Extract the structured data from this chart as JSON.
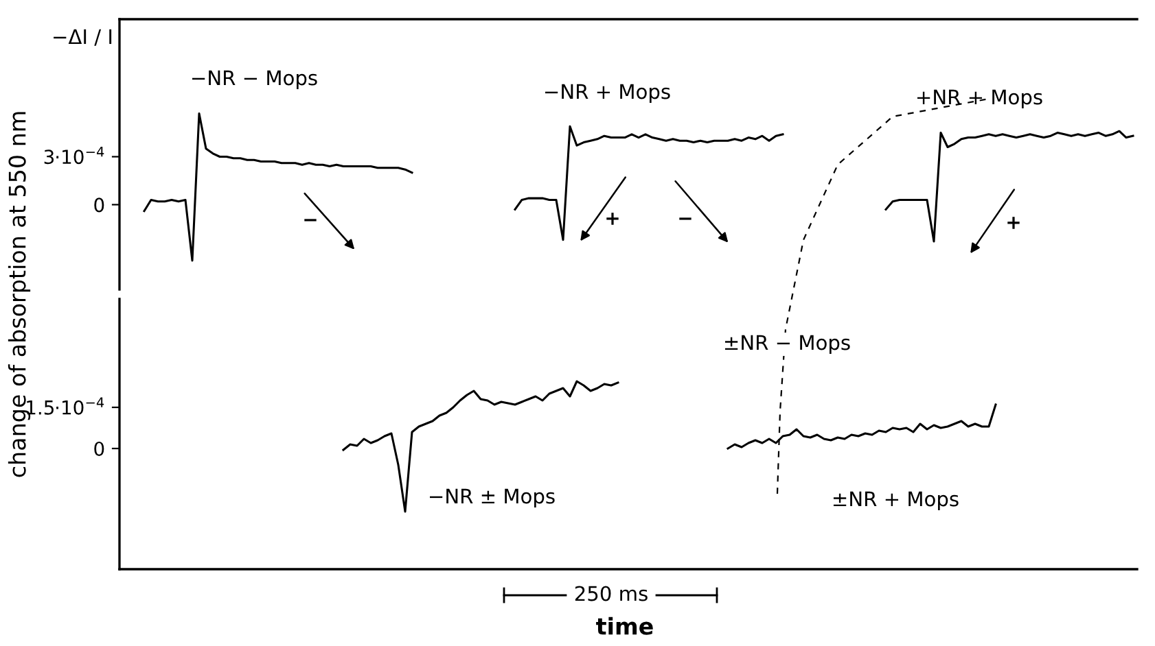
{
  "chart_data": [
    {
      "type": "line",
      "ylabel": "change of absorption at 550 nm",
      "categories": [
        null,
        null,
        null,
        null,
        null,
        null,
        null,
        null,
        null,
        null,
        null,
        null,
        null,
        null,
        null,
        null,
        null,
        null,
        null,
        null,
        null,
        null,
        null,
        null,
        null,
        null,
        null,
        null,
        null,
        null,
        null,
        null,
        null,
        null,
        null,
        null,
        null,
        null,
        null,
        null,
        null,
        null,
        null,
        null,
        null,
        null,
        null,
        null,
        null,
        null,
        null,
        null,
        null,
        null,
        null,
        null,
        null,
        null,
        null,
        null,
        null,
        null,
        null,
        null,
        null,
        null,
        null,
        null,
        null,
        null,
        null,
        null,
        null,
        null,
        null,
        null,
        null,
        null,
        null,
        null,
        null,
        null,
        null,
        null,
        null,
        null,
        null,
        null,
        null,
        null,
        null,
        null,
        null,
        null,
        null,
        null,
        null,
        null,
        null,
        null,
        null,
        null,
        null,
        null,
        null,
        null,
        null,
        null,
        null,
        null,
        null,
        null,
        null,
        null,
        null,
        null,
        null,
        null,
        null,
        null,
        null,
        null,
        null,
        null,
        null,
        null,
        null,
        null,
        null,
        null,
        null,
        null,
        null,
        null,
        null,
        null,
        null,
        null,
        null,
        null,
        null,
        null,
        null,
        null,
        null,
        null,
        null,
        null
      ],
      "ylim": [
        -0.00053,
        0.00116
      ],
      "yticks": [
        {
          "value": 0,
          "label": "0"
        },
        {
          "value": 0.0003,
          "label": "3·10$^{−4}$"
        }
      ],
      "tick_labels": "y",
      "marker": "none",
      "line_style": "solid",
      "annotations": [
        "−ΔI / I",
        "−",
        "+",
        "−",
        "+"
      ],
      "series": [
        {
          "name": "−NR − Mops",
          "color": "#000000",
          "values": [
            null,
            null,
            null,
            -4e-05,
            3e-05,
            2e-05,
            2e-05,
            3e-05,
            2e-05,
            3e-05,
            -0.00035,
            0.00057,
            0.00035,
            0.00032,
            0.0003,
            0.0003,
            0.00029,
            0.00029,
            0.00028,
            0.00028,
            0.00027,
            0.00027,
            0.00027,
            0.00026,
            0.00026,
            0.00026,
            0.00025,
            0.00026,
            0.00025,
            0.00025,
            0.00024,
            0.00025,
            0.00024,
            0.00024,
            0.00024,
            0.00024,
            0.00024,
            0.00023,
            0.00023,
            0.00023,
            0.00023,
            0.00022,
            0.0002,
            null,
            null,
            null,
            null,
            null,
            null,
            null,
            null,
            null,
            null,
            null,
            null,
            null,
            null,
            null,
            null,
            null,
            null,
            null,
            null,
            null,
            null,
            null,
            null,
            null,
            null,
            null,
            null,
            null,
            null,
            null,
            null,
            null,
            null,
            null,
            null,
            null,
            null,
            null,
            null,
            null,
            null,
            null,
            null,
            null,
            null,
            null,
            null,
            null,
            null,
            null,
            null,
            null,
            null,
            null,
            null,
            null,
            null,
            null,
            null,
            null,
            null,
            null,
            null,
            null,
            null,
            null,
            null,
            null,
            null,
            null,
            null,
            null,
            null,
            null,
            null,
            null,
            null,
            null,
            null,
            null,
            null,
            null,
            null,
            null,
            null,
            null,
            null,
            null,
            null,
            null,
            null,
            null,
            null,
            null,
            null,
            null,
            null,
            null,
            null,
            null,
            null,
            null,
            null,
            null
          ]
        },
        {
          "name": "−NR + Mops",
          "color": "#000000",
          "values": [
            null,
            null,
            null,
            null,
            null,
            null,
            null,
            null,
            null,
            null,
            null,
            null,
            null,
            null,
            null,
            null,
            null,
            null,
            null,
            null,
            null,
            null,
            null,
            null,
            null,
            null,
            null,
            null,
            null,
            null,
            null,
            null,
            null,
            null,
            null,
            null,
            null,
            null,
            null,
            null,
            null,
            null,
            null,
            null,
            null,
            null,
            null,
            null,
            null,
            null,
            null,
            null,
            null,
            null,
            null,
            null,
            null,
            -3e-05,
            3e-05,
            4e-05,
            4e-05,
            4e-05,
            3e-05,
            3e-05,
            -0.00022,
            0.00049,
            0.00037,
            0.00039,
            0.0004,
            0.00041,
            0.00043,
            0.00042,
            0.00042,
            0.00042,
            0.00044,
            0.00042,
            0.00044,
            0.00042,
            0.00041,
            0.0004,
            0.00041,
            0.0004,
            0.0004,
            0.00039,
            0.0004,
            0.00039,
            0.0004,
            0.0004,
            0.0004,
            0.00041,
            0.0004,
            0.00042,
            0.00041,
            0.00043,
            0.0004,
            0.00043,
            0.00044,
            null,
            null,
            null,
            null,
            null,
            null,
            null,
            null,
            null,
            null,
            null,
            null,
            null,
            null,
            null,
            null,
            null,
            null,
            null,
            null,
            null,
            null,
            null,
            null,
            null,
            null,
            null,
            null,
            null,
            null,
            null,
            null,
            null,
            null,
            null,
            null,
            null,
            null,
            null,
            null,
            null,
            null,
            null,
            null,
            null,
            null,
            null,
            null,
            null,
            null,
            null
          ]
        },
        {
          "name": "+NR + Mops",
          "color": "#000000",
          "values": [
            null,
            null,
            null,
            null,
            null,
            null,
            null,
            null,
            null,
            null,
            null,
            null,
            null,
            null,
            null,
            null,
            null,
            null,
            null,
            null,
            null,
            null,
            null,
            null,
            null,
            null,
            null,
            null,
            null,
            null,
            null,
            null,
            null,
            null,
            null,
            null,
            null,
            null,
            null,
            null,
            null,
            null,
            null,
            null,
            null,
            null,
            null,
            null,
            null,
            null,
            null,
            null,
            null,
            null,
            null,
            null,
            null,
            null,
            null,
            null,
            null,
            null,
            null,
            null,
            null,
            null,
            null,
            null,
            null,
            null,
            null,
            null,
            null,
            null,
            null,
            null,
            null,
            null,
            null,
            null,
            null,
            null,
            null,
            null,
            null,
            null,
            null,
            null,
            null,
            null,
            null,
            null,
            null,
            null,
            null,
            null,
            null,
            null,
            null,
            null,
            null,
            null,
            null,
            null,
            null,
            null,
            null,
            null,
            null,
            null,
            null,
            -3e-05,
            2e-05,
            3e-05,
            3e-05,
            3e-05,
            3e-05,
            3e-05,
            -0.00023,
            0.00045,
            0.00036,
            0.00038,
            0.00041,
            0.00042,
            0.00042,
            0.00043,
            0.00044,
            0.00043,
            0.00044,
            0.00043,
            0.00042,
            0.00043,
            0.00044,
            0.00043,
            0.00042,
            0.00043,
            0.00045,
            0.00044,
            0.00043,
            0.00044,
            0.00043,
            0.00044,
            0.00045,
            0.00043,
            0.00044,
            0.00046,
            0.00042,
            0.00043
          ]
        }
      ]
    },
    {
      "type": "line",
      "xlabel": "time",
      "categories": [
        null,
        null,
        null,
        null,
        null,
        null,
        null,
        null,
        null,
        null,
        null,
        null,
        null,
        null,
        null,
        null,
        null,
        null,
        null,
        null,
        null,
        null,
        null,
        null,
        null,
        null,
        null,
        null,
        null,
        null,
        null,
        null,
        null,
        null,
        null,
        null,
        null,
        null,
        null,
        null,
        null,
        null,
        null,
        null,
        null,
        null,
        null,
        null,
        null,
        null,
        null,
        null,
        null,
        null,
        null,
        null,
        null,
        null,
        null,
        null,
        null,
        null,
        null,
        null,
        null,
        null,
        null,
        null,
        null,
        null,
        null,
        null,
        null,
        null,
        null,
        null,
        null,
        null,
        null,
        null,
        null,
        null,
        null,
        null,
        null,
        null,
        null,
        null,
        null,
        null,
        null,
        null,
        null,
        null,
        null,
        null,
        null,
        null,
        null,
        null,
        null,
        null,
        null,
        null,
        null,
        null,
        null,
        null,
        null,
        null,
        null,
        null,
        null,
        null,
        null,
        null,
        null,
        null,
        null,
        null,
        null,
        null,
        null,
        null,
        null,
        null,
        null,
        null,
        null,
        null,
        null,
        null,
        null,
        null,
        null,
        null,
        null,
        null,
        null,
        null,
        null,
        null,
        null,
        null,
        null,
        null,
        null,
        null
      ],
      "ylim": [
        -0.00044,
        0.000545
      ],
      "yticks": [
        {
          "value": 0,
          "label": "0"
        },
        {
          "value": 0.00015,
          "label": "1.5·10$^{−4}$"
        }
      ],
      "tick_labels": "y",
      "marker": "none",
      "line_style": "solid",
      "annotations": [
        "±NR − Mops",
        "250 ms"
      ],
      "series": [
        {
          "name": "−NR ± Mops",
          "color": "#000000",
          "values": [
            null,
            null,
            null,
            null,
            null,
            null,
            null,
            null,
            null,
            null,
            null,
            null,
            null,
            null,
            null,
            null,
            null,
            null,
            null,
            null,
            null,
            null,
            null,
            null,
            null,
            null,
            null,
            null,
            null,
            null,
            null,
            null,
            -5e-06,
            1.5e-05,
            1e-05,
            3.5e-05,
            2e-05,
            3e-05,
            4.5e-05,
            5.5e-05,
            -6e-05,
            -0.00023,
            6e-05,
            8e-05,
            9e-05,
            0.0001,
            0.00012,
            0.00013,
            0.00015,
            0.000175,
            0.000195,
            0.00021,
            0.00018,
            0.000175,
            0.00016,
            0.00017,
            0.000165,
            0.00016,
            0.00017,
            0.00018,
            0.00019,
            0.000175,
            0.0002,
            0.00021,
            0.00022,
            0.00019,
            0.000245,
            0.00023,
            0.00021,
            0.00022,
            0.000235,
            0.00023,
            0.00024,
            null,
            null,
            null,
            null,
            null,
            null,
            null,
            null,
            null,
            null,
            null,
            null,
            null,
            null,
            null,
            null,
            null,
            null,
            null,
            null,
            null,
            null,
            null,
            null,
            null,
            null,
            null,
            null,
            null,
            null,
            null,
            null,
            null,
            null,
            null,
            null,
            null,
            null,
            null,
            null,
            null,
            null,
            null,
            null,
            null,
            null,
            null,
            null,
            null,
            null,
            null,
            null,
            null,
            null,
            null,
            null,
            null,
            null,
            null,
            null,
            null,
            null,
            null,
            null,
            null,
            null,
            null,
            null,
            null,
            null,
            null,
            null,
            null,
            null,
            null
          ]
        },
        {
          "name": "±NR + Mops",
          "color": "#000000",
          "values": [
            null,
            null,
            null,
            null,
            null,
            null,
            null,
            null,
            null,
            null,
            null,
            null,
            null,
            null,
            null,
            null,
            null,
            null,
            null,
            null,
            null,
            null,
            null,
            null,
            null,
            null,
            null,
            null,
            null,
            null,
            null,
            null,
            null,
            null,
            null,
            null,
            null,
            null,
            null,
            null,
            null,
            null,
            null,
            null,
            null,
            null,
            null,
            null,
            null,
            null,
            null,
            null,
            null,
            null,
            null,
            null,
            null,
            null,
            null,
            null,
            null,
            null,
            null,
            null,
            null,
            null,
            null,
            null,
            null,
            null,
            null,
            null,
            null,
            null,
            null,
            null,
            null,
            null,
            null,
            null,
            null,
            null,
            null,
            null,
            null,
            null,
            null,
            null,
            0,
            1.5e-05,
            5e-06,
            2e-05,
            3e-05,
            2e-05,
            3.5e-05,
            2e-05,
            4.5e-05,
            5e-05,
            7e-05,
            4.5e-05,
            4e-05,
            5e-05,
            3.5e-05,
            3e-05,
            4e-05,
            3.5e-05,
            5e-05,
            4.5e-05,
            5.5e-05,
            5e-05,
            6.5e-05,
            6e-05,
            7.5e-05,
            7e-05,
            7.5e-05,
            6e-05,
            9e-05,
            7e-05,
            8.5e-05,
            7.5e-05,
            8e-05,
            9e-05,
            0.0001,
            8e-05,
            9e-05,
            8e-05,
            8e-05,
            0.00016,
            null,
            null,
            null,
            null,
            null,
            null,
            null,
            null,
            null,
            null,
            null,
            null,
            null,
            null,
            null,
            null,
            null,
            null,
            null,
            null
          ]
        }
      ]
    }
  ]
}
